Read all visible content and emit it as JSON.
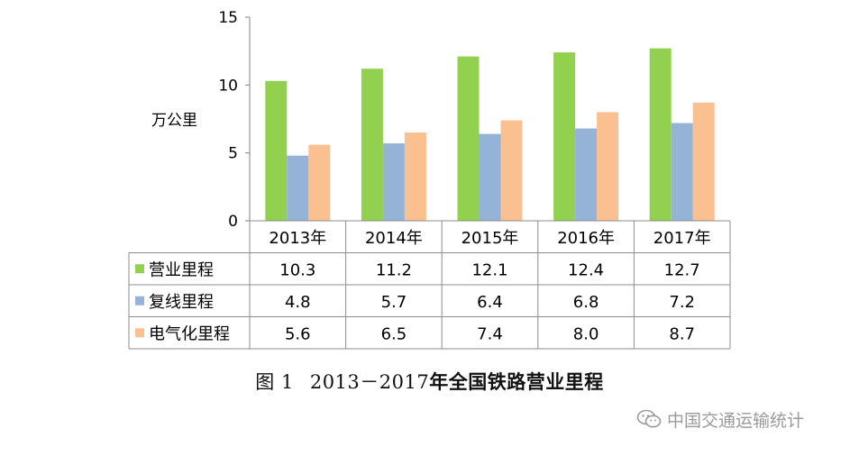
{
  "chart_data": {
    "type": "bar",
    "ylabel": "万公里",
    "ylim": [
      0,
      15
    ],
    "yticks": [
      0,
      5,
      10,
      15
    ],
    "categories": [
      "2013年",
      "2014年",
      "2015年",
      "2016年",
      "2017年"
    ],
    "series": [
      {
        "name": "营业里程",
        "color": "#92d050",
        "values": [
          10.3,
          11.2,
          12.1,
          12.4,
          12.7
        ]
      },
      {
        "name": "复线里程",
        "color": "#95b3d7",
        "values": [
          4.8,
          5.7,
          6.4,
          6.8,
          7.2
        ]
      },
      {
        "name": "电气化里程",
        "color": "#fac090",
        "values": [
          5.6,
          6.5,
          7.4,
          8.0,
          8.7
        ]
      }
    ],
    "table_values": [
      [
        "10.3",
        "11.2",
        "12.1",
        "12.4",
        "12.7"
      ],
      [
        "4.8",
        "5.7",
        "6.4",
        "6.8",
        "7.2"
      ],
      [
        "5.6",
        "6.5",
        "7.4",
        "8.0",
        "8.7"
      ]
    ]
  },
  "caption": {
    "figure_number": "图 1",
    "years": "2013－2017",
    "title": "年全国铁路营业里程"
  },
  "watermark": {
    "text": "中国交通运输统计",
    "icon": "wechat-icon"
  }
}
